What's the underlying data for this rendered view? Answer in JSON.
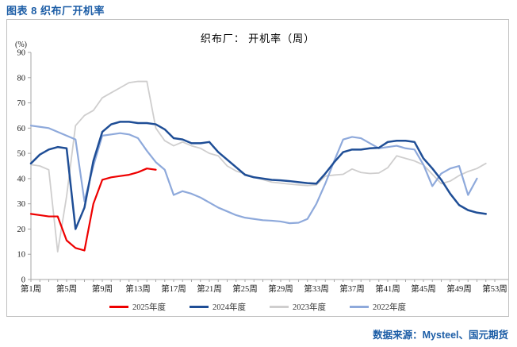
{
  "page_title": "图表 8 织布厂开机率",
  "source_note": "数据来源：Mysteel、国元期货",
  "accent_color": "#1c5da6",
  "chart_data": {
    "type": "line",
    "title": "织布厂： 开机率（周）",
    "unit_label": "(%)",
    "ylim": [
      0,
      90
    ],
    "ytick_step": 10,
    "grid": false,
    "legend_position": "bottom",
    "x_axis_weeks": 53,
    "xtick_weeks": [
      1,
      5,
      9,
      13,
      17,
      21,
      25,
      29,
      33,
      37,
      41,
      45,
      49,
      53
    ],
    "xtick_labels": [
      "第1周",
      "第5周",
      "第9周",
      "第13周",
      "第17周",
      "第21周",
      "第25周",
      "第29周",
      "第33周",
      "第37周",
      "第41周",
      "第45周",
      "第49周",
      "第53周"
    ],
    "series": [
      {
        "name": "2025年度",
        "color": "#ee0000",
        "start_week": 1,
        "values": [
          26,
          25.5,
          25,
          25,
          15.5,
          12.5,
          11.5,
          30,
          39.5,
          40.5,
          41,
          41.5,
          42.5,
          44,
          43.5
        ]
      },
      {
        "name": "2024年度",
        "color": "#1f4e96",
        "start_week": 1,
        "values": [
          46,
          49.5,
          51.5,
          52.5,
          52,
          20,
          28.5,
          47,
          58.5,
          61.5,
          62.5,
          62.5,
          62,
          62,
          61.5,
          59.5,
          56,
          55.5,
          54,
          54,
          54.5,
          50.5,
          47.5,
          44.5,
          41.5,
          40.5,
          40,
          39.5,
          39.3,
          39,
          38.6,
          38.2,
          38,
          42,
          46.5,
          50.5,
          51.5,
          51.5,
          52,
          52.2,
          54.5,
          55,
          55,
          54.5,
          48,
          44,
          39.5,
          34,
          29.5,
          27.5,
          26.5,
          26
        ]
      },
      {
        "name": "2023年度",
        "color": "#cfcece",
        "start_week": 1,
        "values": [
          45.5,
          45,
          43.5,
          11,
          33,
          61,
          65,
          67,
          72,
          74,
          76,
          78,
          78.5,
          78.5,
          60,
          55,
          53,
          54.5,
          53,
          52,
          50,
          49,
          45,
          43,
          41.8,
          40.6,
          39.6,
          38.6,
          38.2,
          37.8,
          37.5,
          37.2,
          37.5,
          41,
          41.4,
          41.7,
          43.8,
          42.4,
          42,
          42.2,
          44.3,
          49,
          48,
          47,
          45.4,
          41.7,
          38,
          39,
          41.2,
          42.8,
          44,
          46
        ]
      },
      {
        "name": "2022年度",
        "color": "#8ea9db",
        "start_week": 1,
        "values": [
          61,
          60.5,
          60,
          58.5,
          57,
          55.5,
          31,
          45,
          57,
          57.5,
          58,
          57.5,
          56,
          51,
          46.5,
          43.5,
          33.5,
          35,
          34,
          32.5,
          30.5,
          28.5,
          27,
          25.5,
          24.5,
          24,
          23.5,
          23.3,
          23,
          22.3,
          22.5,
          24,
          30,
          38,
          47,
          55.5,
          56.5,
          56,
          54,
          52,
          52.5,
          53,
          52,
          51.5,
          45.5,
          37,
          42,
          44,
          45,
          33.5,
          40
        ]
      }
    ]
  }
}
